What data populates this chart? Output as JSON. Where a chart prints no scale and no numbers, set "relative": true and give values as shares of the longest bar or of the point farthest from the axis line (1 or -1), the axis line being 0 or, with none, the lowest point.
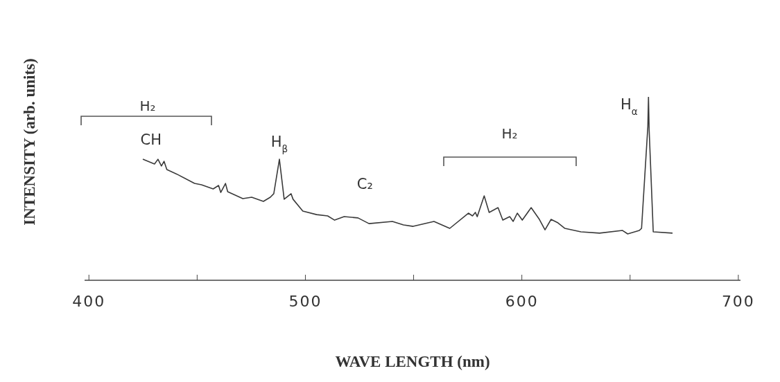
{
  "chart_data": {
    "type": "line",
    "relative": true,
    "xlabel": "WAVE LENGTH (nm)",
    "ylabel": "INTENSITY (arb. units)",
    "xlim": [
      398,
      701
    ],
    "xticks": [
      400,
      {
        "value": 450,
        "label": null
      },
      500,
      {
        "value": 550,
        "label": null
      },
      600,
      {
        "value": 650,
        "label": null
      },
      700
    ],
    "marker": "none",
    "line_style": "solid",
    "color": "#3a3a3a",
    "x": [
      424.9,
      430.3,
      431.9,
      433.5,
      434.7,
      436.0,
      441.4,
      448.8,
      452.0,
      457.4,
      459.9,
      460.9,
      463.1,
      464.1,
      471.1,
      475.2,
      480.6,
      483.8,
      485.4,
      488.0,
      490.2,
      493.4,
      494.3,
      498.8,
      505.2,
      510.3,
      513.5,
      517.9,
      524.3,
      529.4,
      540.2,
      545.3,
      549.8,
      559.4,
      566.7,
      575.3,
      577.2,
      578.5,
      579.4,
      582.6,
      584.9,
      589.0,
      591.2,
      594.4,
      596.0,
      597.9,
      600.2,
      604.3,
      608.1,
      610.7,
      613.5,
      616.7,
      619.9,
      627.3,
      635.9,
      646.4,
      648.9,
      654.3,
      655.3,
      658.2,
      658.5,
      658.8,
      660.7,
      669.6
    ],
    "values": [
      0.66,
      0.634,
      0.66,
      0.623,
      0.649,
      0.604,
      0.574,
      0.528,
      0.521,
      0.498,
      0.517,
      0.479,
      0.528,
      0.483,
      0.445,
      0.453,
      0.43,
      0.453,
      0.472,
      0.66,
      0.442,
      0.472,
      0.442,
      0.377,
      0.358,
      0.351,
      0.328,
      0.347,
      0.34,
      0.309,
      0.321,
      0.302,
      0.294,
      0.321,
      0.283,
      0.366,
      0.351,
      0.37,
      0.347,
      0.46,
      0.37,
      0.396,
      0.328,
      0.347,
      0.321,
      0.366,
      0.328,
      0.396,
      0.332,
      0.275,
      0.332,
      0.313,
      0.283,
      0.264,
      0.257,
      0.272,
      0.253,
      0.272,
      0.283,
      0.838,
      1,
      0.823,
      0.264,
      0.257
    ],
    "annotations": [
      "H₂",
      "H₂",
      {
        "text": "CH",
        "x": 430.3,
        "y": 0.634
      },
      {
        "text": "H$_{β}$",
        "x": 488.0,
        "y": 0.66
      },
      {
        "text": "C₂",
        "x": 517.9,
        "y": 0.347
      },
      {
        "text": "H$_{α}$",
        "x": 658.5,
        "y": 1
      }
    ]
  }
}
